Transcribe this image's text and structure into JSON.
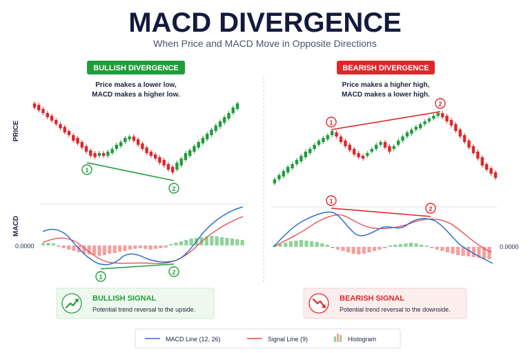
{
  "header": {
    "title": "MACD DIVERGENCE",
    "subtitle": "When Price and MACD Move in Opposite Directions"
  },
  "axis_labels": {
    "price": "PRICE",
    "macd": "MACD",
    "zero_left": "0.0000",
    "zero_right": "0.0000"
  },
  "bullish": {
    "badge": "BULLISH DIVERGENCE",
    "desc_line1": "Price makes a lower low,",
    "desc_line2": "MACD makes a higher low.",
    "marker1": "1",
    "marker2": "2",
    "signal_title": "BULLISH SIGNAL",
    "signal_text": "Potential trend reversal to the upside.",
    "icon": "trend-up-arrow-icon"
  },
  "bearish": {
    "badge": "BEARISH DIVERGENCE",
    "desc_line1": "Price makes a higher high,",
    "desc_line2": "MACD makes a lower high.",
    "marker1": "1",
    "marker2": "2",
    "signal_title": "BEARISH SIGNAL",
    "signal_text": "Potential trend reversal to the downside.",
    "icon": "trend-down-arrow-icon"
  },
  "legend": {
    "macd": "MACD Line (12, 26)",
    "signal": "Signal Line (9)",
    "histogram": "Histogram"
  },
  "colors": {
    "title": "#141a3d",
    "subtitle": "#4a5270",
    "bull": "#1f9d3a",
    "bear": "#e0262b",
    "macd_line": "#2f6fc8",
    "signal_line": "#e8474b",
    "hist_pos": "#8fd29a",
    "hist_neg": "#f4a0a0"
  }
}
